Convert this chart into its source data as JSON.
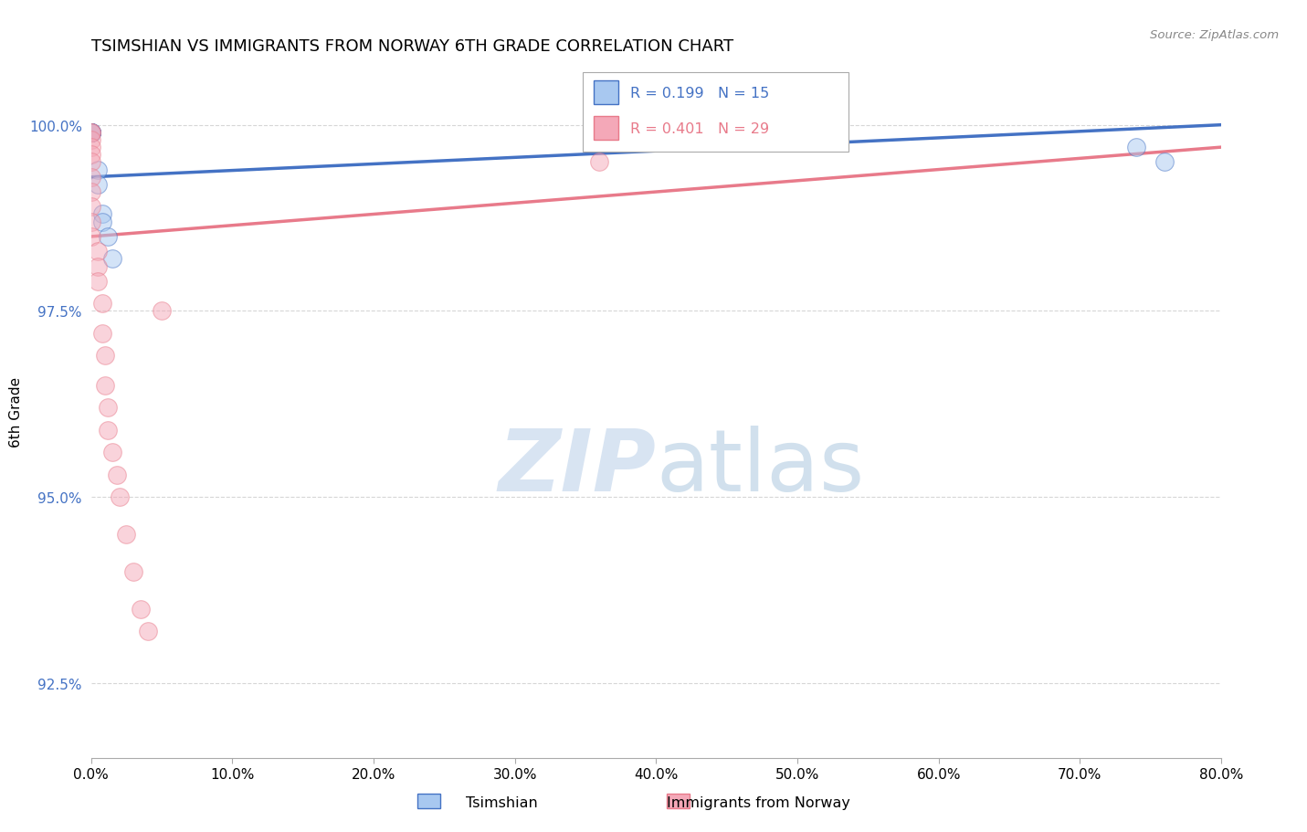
{
  "title": "TSIMSHIAN VS IMMIGRANTS FROM NORWAY 6TH GRADE CORRELATION CHART",
  "source": "Source: ZipAtlas.com",
  "xlabel_tsimshian": "Tsimshian",
  "xlabel_norway": "Immigrants from Norway",
  "ylabel": "6th Grade",
  "xlim": [
    0.0,
    80.0
  ],
  "ylim": [
    91.5,
    100.8
  ],
  "yticks": [
    92.5,
    95.0,
    97.5,
    100.0
  ],
  "xticks": [
    0.0,
    10.0,
    20.0,
    30.0,
    40.0,
    50.0,
    60.0,
    70.0,
    80.0
  ],
  "r_tsimshian": 0.199,
  "n_tsimshian": 15,
  "r_norway": 0.401,
  "n_norway": 29,
  "color_tsimshian": "#A8C8F0",
  "color_norway": "#F4A8B8",
  "trendline_tsimshian": "#4472C4",
  "trendline_norway": "#E87A8A",
  "tsimshian_x": [
    0.0,
    0.0,
    0.0,
    0.0,
    0.0,
    0.0,
    0.0,
    0.5,
    0.5,
    0.8,
    0.8,
    1.2,
    1.5,
    74.0,
    76.0
  ],
  "tsimshian_y": [
    99.9,
    99.9,
    99.9,
    99.9,
    99.9,
    99.9,
    99.9,
    99.4,
    99.2,
    98.8,
    98.7,
    98.5,
    98.2,
    99.7,
    99.5
  ],
  "norway_x": [
    0.0,
    0.0,
    0.0,
    0.0,
    0.0,
    0.0,
    0.0,
    0.0,
    0.0,
    0.0,
    0.0,
    0.5,
    0.5,
    0.5,
    0.8,
    0.8,
    1.0,
    1.0,
    1.2,
    1.2,
    1.5,
    1.8,
    2.0,
    2.5,
    3.0,
    3.5,
    4.0,
    36.0,
    5.0
  ],
  "norway_y": [
    99.9,
    99.9,
    99.8,
    99.7,
    99.6,
    99.5,
    99.3,
    99.1,
    98.9,
    98.7,
    98.5,
    98.3,
    98.1,
    97.9,
    97.6,
    97.2,
    96.9,
    96.5,
    96.2,
    95.9,
    95.6,
    95.3,
    95.0,
    94.5,
    94.0,
    93.5,
    93.2,
    99.5,
    97.5
  ],
  "trendline_blue_x0": 0.0,
  "trendline_blue_y0": 99.3,
  "trendline_blue_x1": 80.0,
  "trendline_blue_y1": 100.0,
  "trendline_pink_x0": 0.0,
  "trendline_pink_y0": 98.5,
  "trendline_pink_x1": 80.0,
  "trendline_pink_y1": 99.7
}
